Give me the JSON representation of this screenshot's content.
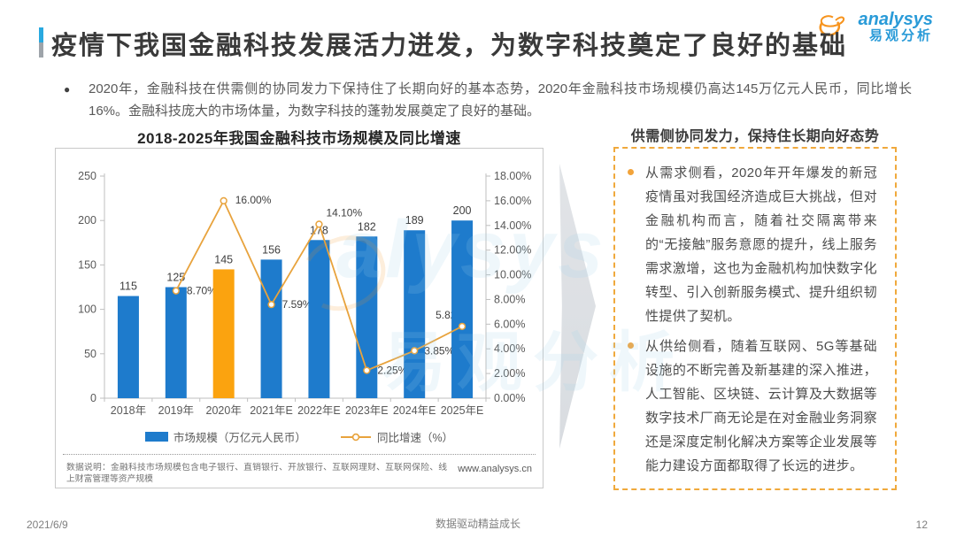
{
  "page": {
    "title": "疫情下我国金融科技发展活力迸发，为数字科技奠定了良好的基础",
    "logo": {
      "brand_en": "analysys",
      "brand_cn": "易观分析"
    },
    "intro_bullet": "2020年，金融科技在供需侧的协同发力下保持住了长期向好的基本态势，2020年金融科技市场规模仍高达145万亿元人民币，同比增长16%。金融科技庞大的市场体量，为数字科技的蓬勃发展奠定了良好的基础。",
    "footer": {
      "date": "2021/6/9",
      "slogan": "数据驱动精益成长",
      "page_number": "12"
    }
  },
  "chart_data": {
    "type": "bar+line",
    "title": "2018-2025年我国金融科技市场规模及同比增速",
    "categories": [
      "2018年",
      "2019年",
      "2020年",
      "2021年E",
      "2022年E",
      "2023年E",
      "2024年E",
      "2025年E"
    ],
    "series": [
      {
        "name": "市场规模（万亿元人民币）",
        "type": "bar",
        "values": [
          115,
          125,
          145,
          156,
          178,
          182,
          189,
          200
        ],
        "highlight_index": 2
      },
      {
        "name": "同比增速（%）",
        "type": "line",
        "values": [
          null,
          8.7,
          16.0,
          7.59,
          14.1,
          2.25,
          3.85,
          5.82
        ],
        "labels": [
          null,
          "8.70%",
          "16.00%",
          "7.59%",
          "14.10%",
          "2.25%",
          "3.85%",
          "5.82%"
        ]
      }
    ],
    "left_axis": {
      "min": 0,
      "max": 250,
      "ticks": [
        "250",
        "200",
        "150",
        "100",
        "50",
        "0"
      ]
    },
    "right_axis": {
      "min": 0,
      "max": 18,
      "ticks": [
        "18.00%",
        "16.00%",
        "14.00%",
        "12.00%",
        "10.00%",
        "8.00%",
        "6.00%",
        "4.00%",
        "2.00%",
        "0.00%"
      ]
    },
    "grid": false,
    "legend_position": "bottom",
    "colors": {
      "bar": "#1e7bcc",
      "bar_highlight": "#fba30f",
      "line": "#e8a33d",
      "axis": "#bfbfbf",
      "tick_text": "#595959",
      "label_text": "#3f3f3f"
    },
    "note": "数据说明：金融科技市场规模包含电子银行、直销银行、开放银行、互联网理财、互联网保险、线上财富管理等资产规模",
    "source_site": "www.analysys.cn"
  },
  "panel": {
    "title": "供需侧协同发力，保持住长期向好态势",
    "bullets": [
      "从需求侧看，2020年开年爆发的新冠疫情虽对我国经济造成巨大挑战，但对金融机构而言，随着社交隔离带来的“无接触”服务意愿的提升，线上服务需求激增，这也为金融机构加快数字化转型、引入创新服务模式、提升组织韧性提供了契机。",
      "从供给侧看，随着互联网、5G等基础设施的不断完善及新基建的深入推进，人工智能、区块链、云计算及大数据等数字技术厂商无论是在对金融业务洞察还是深度定制化解决方案等企业发展等能力建设方面都取得了长远的进步。"
    ]
  },
  "watermark": {
    "en": "alysys",
    "cn": "易观分析"
  }
}
